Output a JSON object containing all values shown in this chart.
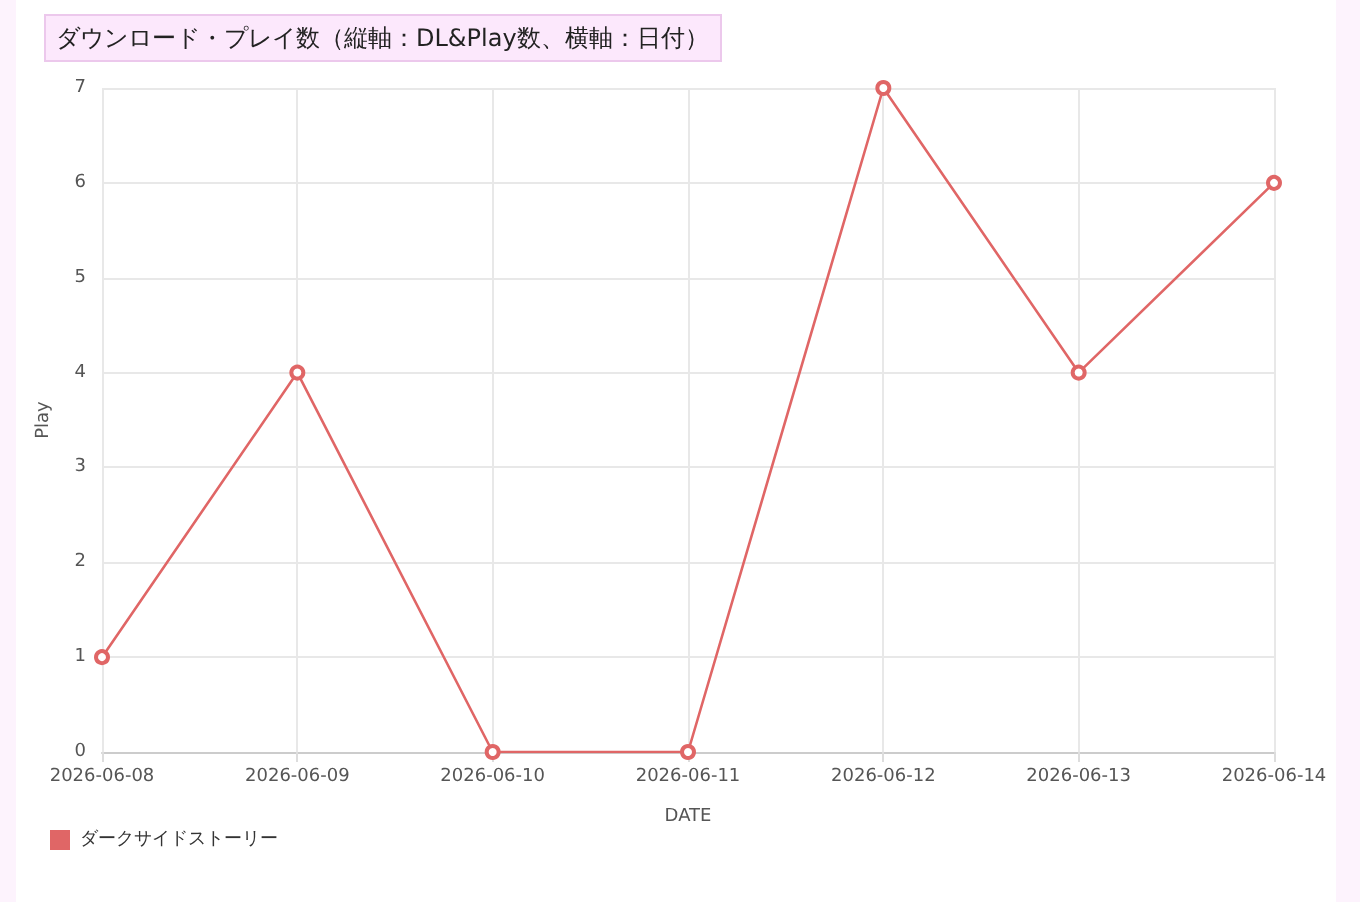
{
  "chart_data": {
    "type": "line",
    "title": "ダウンロード・プレイ数（縦軸：DL&Play数、横軸：日付）",
    "xlabel": "DATE",
    "ylabel": "Play",
    "categories": [
      "2026-06-08",
      "2026-06-09",
      "2026-06-10",
      "2026-06-11",
      "2026-06-12",
      "2026-06-13",
      "2026-06-14"
    ],
    "series": [
      {
        "name": "ダークサイドストーリー",
        "color": "#e06666",
        "values": [
          1,
          4,
          0,
          0,
          7,
          4,
          6
        ]
      }
    ],
    "ylim": [
      0,
      7
    ],
    "yticks": [
      0,
      1,
      2,
      3,
      4,
      5,
      6,
      7
    ],
    "grid": true,
    "legend": "bottom left",
    "marker": "circle",
    "line_style": "solid"
  }
}
